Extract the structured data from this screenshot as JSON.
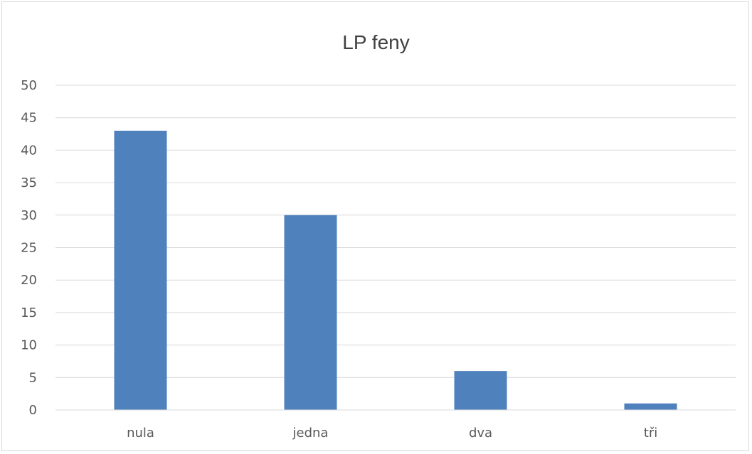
{
  "chart_data": {
    "type": "bar",
    "title": "LP feny",
    "categories": [
      "nula",
      "jedna",
      "dva",
      "tři"
    ],
    "values": [
      43,
      30,
      6,
      1
    ],
    "ylim": [
      0,
      50
    ],
    "yticks": [
      0,
      5,
      10,
      15,
      20,
      25,
      30,
      35,
      40,
      45,
      50
    ],
    "xlabel": "",
    "ylabel": "",
    "grid": true,
    "legend": "none",
    "colors": {
      "bar": "#4f81bd",
      "grid": "#d9d9d9",
      "axis": "#d9d9d9",
      "text": "#595959",
      "title": "#404040"
    }
  }
}
